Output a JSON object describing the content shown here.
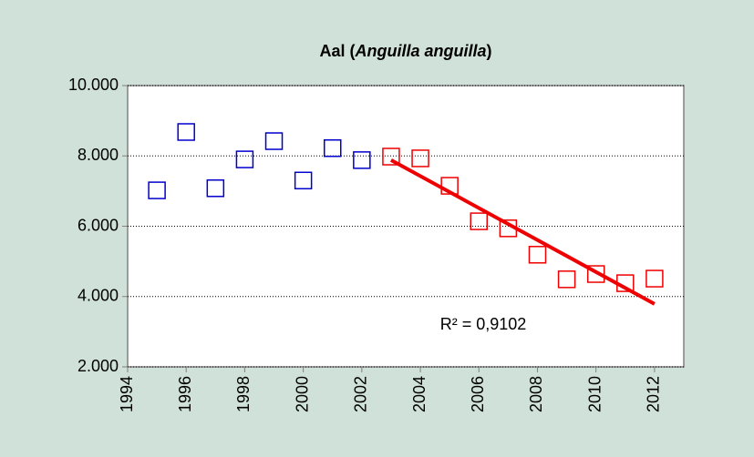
{
  "chart_data": {
    "type": "scatter",
    "title": [
      "Aal (",
      "Anguilla anguilla",
      ")"
    ],
    "xlim": [
      1994,
      2013
    ],
    "xticks": [
      1994,
      1996,
      1998,
      2000,
      2002,
      2004,
      2006,
      2008,
      2010,
      2012
    ],
    "ylim": [
      2000,
      10000
    ],
    "yticks": [
      {
        "value": 2000,
        "label": "2.000"
      },
      {
        "value": 4000,
        "label": "4.000"
      },
      {
        "value": 6000,
        "label": "6.000"
      },
      {
        "value": 8000,
        "label": "8.000"
      },
      {
        "value": 10000,
        "label": "10.000"
      }
    ],
    "grid": true,
    "series": [
      {
        "color": "#0000cc",
        "x": [
          1995,
          1996,
          1997,
          1998,
          1999,
          2000,
          2001,
          2002
        ],
        "values": [
          7020,
          8680,
          7080,
          7900,
          8420,
          7300,
          8220,
          7880
        ]
      },
      {
        "color": "#ee0000",
        "x": [
          2003,
          2004,
          2005,
          2006,
          2007,
          2008,
          2009,
          2010,
          2011,
          2012
        ],
        "values": [
          7980,
          7930,
          7150,
          6140,
          5940,
          5190,
          4490,
          4640,
          4380,
          4510
        ]
      }
    ],
    "trendline": {
      "color": "#ee0000",
      "x": [
        2003,
        2012
      ],
      "values": [
        7880,
        3790
      ],
      "label": "R² = 0,9102"
    }
  }
}
